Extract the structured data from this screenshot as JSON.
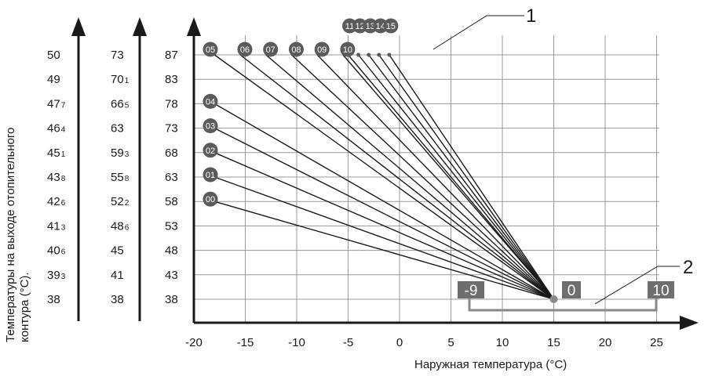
{
  "chart_data": {
    "type": "line",
    "ylabel": "Температуры на выходе отопительного контура (°C).",
    "xlabel": "Наружная температура (°C)",
    "xlim": [
      -20,
      25
    ],
    "xticks": [
      "-20",
      "-15",
      "-10",
      "-5",
      "0",
      "5",
      "10",
      "15",
      "20",
      "25"
    ],
    "pivot": {
      "x": 15,
      "y": 38
    },
    "y_columns": [
      {
        "main": [
          "50",
          "49",
          "47",
          "46",
          "45",
          "43",
          "42",
          "41",
          "40",
          "39",
          "38"
        ],
        "sub": [
          "",
          "",
          "7",
          "4",
          "1",
          "8",
          "6",
          "3",
          "6",
          "3",
          ""
        ]
      },
      {
        "main": [
          "73",
          "70",
          "66",
          "63",
          "59",
          "55",
          "52",
          "48",
          "45",
          "41",
          "38"
        ],
        "sub": [
          "",
          "1",
          "5",
          "",
          "3",
          "8",
          "2",
          "6",
          "",
          "",
          ""
        ]
      },
      {
        "main": [
          "87",
          "83",
          "78",
          "73",
          "68",
          "63",
          "58",
          "53",
          "48",
          "43",
          "38"
        ],
        "sub": [
          "",
          "",
          "",
          "",
          "",
          "",
          "",
          "",
          "",
          "",
          ""
        ]
      }
    ],
    "series": [
      {
        "name": "00",
        "x": [
          -18,
          15
        ],
        "y": [
          58,
          38
        ]
      },
      {
        "name": "01",
        "x": [
          -18,
          15
        ],
        "y": [
          63,
          38
        ]
      },
      {
        "name": "02",
        "x": [
          -18,
          15
        ],
        "y": [
          68,
          38
        ]
      },
      {
        "name": "03",
        "x": [
          -18,
          15
        ],
        "y": [
          73,
          38
        ]
      },
      {
        "name": "04",
        "x": [
          -18,
          15
        ],
        "y": [
          78,
          38
        ]
      },
      {
        "name": "05",
        "x": [
          -18,
          15
        ],
        "y": [
          87,
          38
        ]
      },
      {
        "name": "06",
        "x": [
          -15.5,
          15
        ],
        "y": [
          87,
          38
        ]
      },
      {
        "name": "07",
        "x": [
          -13,
          15
        ],
        "y": [
          87,
          38
        ]
      },
      {
        "name": "08",
        "x": [
          -10.5,
          15
        ],
        "y": [
          87,
          38
        ]
      },
      {
        "name": "09",
        "x": [
          -8,
          15
        ],
        "y": [
          87,
          38
        ]
      },
      {
        "name": "10",
        "x": [
          -5.5,
          15
        ],
        "y": [
          87,
          38
        ]
      },
      {
        "name": "11",
        "x": [
          -5,
          15
        ],
        "y": [
          87,
          38
        ]
      },
      {
        "name": "12",
        "x": [
          -4,
          15
        ],
        "y": [
          87,
          38
        ]
      },
      {
        "name": "13",
        "x": [
          -3,
          15
        ],
        "y": [
          87,
          38
        ]
      },
      {
        "name": "14",
        "x": [
          -2,
          15
        ],
        "y": [
          87,
          38
        ]
      },
      {
        "name": "15",
        "x": [
          -1,
          15
        ],
        "y": [
          87,
          38
        ]
      }
    ],
    "annotations": {
      "callout_1": "1",
      "callout_2": "2"
    },
    "offset_scale": {
      "left": "-9",
      "mid": "0",
      "right": "10"
    },
    "colors": {
      "marker": "#5b5b5b",
      "label_box": "#6e6e6e",
      "grid": "#9a9a9a",
      "axis": "#1a1a1a"
    }
  }
}
